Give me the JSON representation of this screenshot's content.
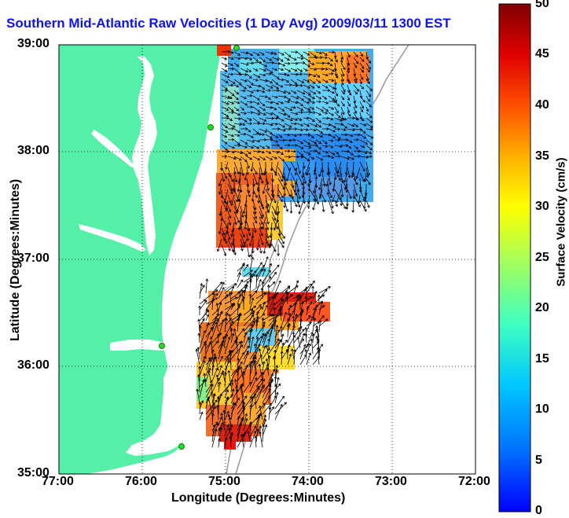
{
  "title": "Southern Mid-Atlantic Raw Velocities (1 Day Avg) 2009/03/11 1300 EST",
  "map": {
    "x_label": "Longitude (Degrees:Minutes)",
    "y_label": "Latitude (Degrees:Minutes)",
    "lon_range": [
      -77,
      -72
    ],
    "lat_range": [
      35,
      39
    ],
    "x_ticks": [
      "77:00",
      "76:00",
      "75:00",
      "74:00",
      "73:00",
      "72:00"
    ],
    "y_ticks": [
      "39:00",
      "38:00",
      "37:00",
      "36:00",
      "35:00"
    ],
    "land_color": "#55f0a8",
    "water_color": "#ffffff",
    "grid": true,
    "stations_color": "#22dd22"
  },
  "colorbar": {
    "label": "Surface Velocity (cm/s)",
    "units": "cm/s",
    "min": 0,
    "max": 50,
    "ticks": [
      "50",
      "45",
      "40",
      "35",
      "30",
      "25",
      "20",
      "15",
      "10",
      "5",
      "0"
    ],
    "colormap": "jet"
  }
}
